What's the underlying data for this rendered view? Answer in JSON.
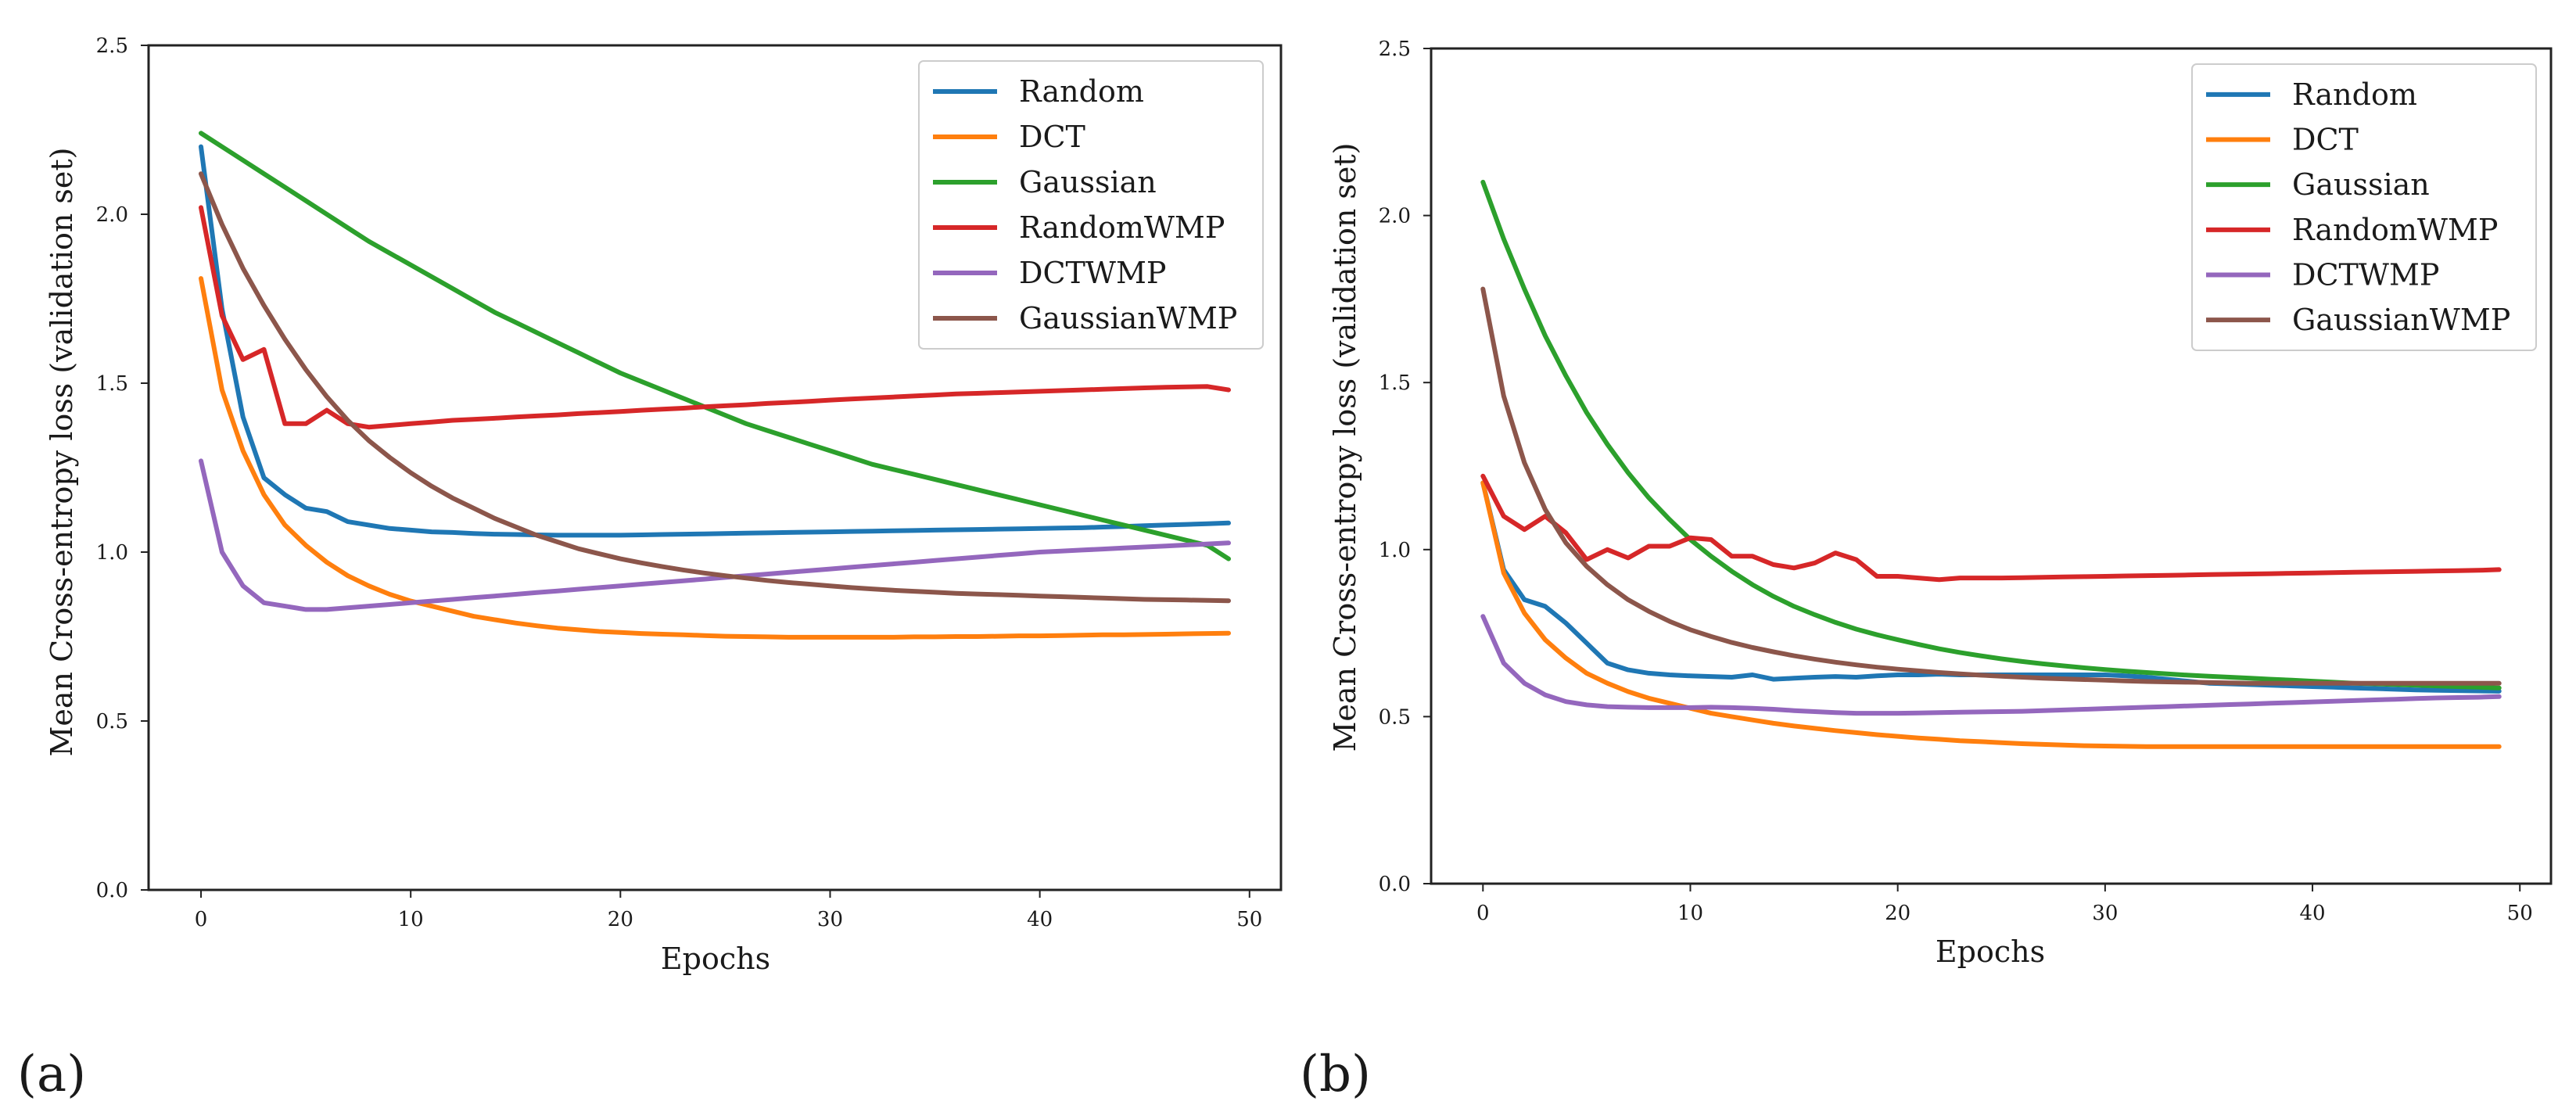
{
  "colors": {
    "Random": "#1f77b4",
    "DCT": "#ff7f0e",
    "Gaussian": "#2ca02c",
    "RandomWMP": "#d62728",
    "DCTWMP": "#9467bd",
    "GaussianWMP": "#8c564b"
  },
  "chart_data": [
    {
      "type": "line",
      "panel_label": "(a)",
      "xlabel": "Epochs",
      "ylabel": "Mean Cross-entropy loss (validation set)",
      "xlim": [
        -2.5,
        51.5
      ],
      "ylim": [
        0.0,
        2.5
      ],
      "xticks": [
        0,
        10,
        20,
        30,
        40,
        50
      ],
      "xtick_labels": [
        "0",
        "10",
        "20",
        "30",
        "40",
        "50"
      ],
      "yticks": [
        0.0,
        0.5,
        1.0,
        1.5,
        2.0,
        2.5
      ],
      "ytick_labels": [
        "0.0",
        "0.5",
        "1.0",
        "1.5",
        "2.0",
        "2.5"
      ],
      "legend": "top-right",
      "x": [
        0,
        1,
        2,
        3,
        4,
        5,
        6,
        7,
        8,
        9,
        10,
        11,
        12,
        13,
        14,
        15,
        16,
        17,
        18,
        19,
        20,
        21,
        22,
        23,
        24,
        25,
        26,
        27,
        28,
        29,
        30,
        31,
        32,
        33,
        34,
        35,
        36,
        37,
        38,
        39,
        40,
        41,
        42,
        43,
        44,
        45,
        46,
        47,
        48,
        49
      ],
      "series": [
        {
          "name": "Random",
          "values": [
            2.2,
            1.72,
            1.4,
            1.22,
            1.17,
            1.13,
            1.12,
            1.09,
            1.08,
            1.07,
            1.065,
            1.06,
            1.058,
            1.055,
            1.053,
            1.052,
            1.051,
            1.05,
            1.05,
            1.05,
            1.05,
            1.051,
            1.052,
            1.053,
            1.054,
            1.055,
            1.056,
            1.057,
            1.058,
            1.059,
            1.06,
            1.061,
            1.062,
            1.063,
            1.064,
            1.065,
            1.066,
            1.067,
            1.068,
            1.069,
            1.07,
            1.071,
            1.072,
            1.074,
            1.076,
            1.078,
            1.08,
            1.082,
            1.084,
            1.086
          ]
        },
        {
          "name": "DCT",
          "values": [
            1.81,
            1.48,
            1.3,
            1.17,
            1.08,
            1.02,
            0.97,
            0.93,
            0.9,
            0.875,
            0.855,
            0.84,
            0.825,
            0.81,
            0.8,
            0.79,
            0.782,
            0.775,
            0.77,
            0.765,
            0.762,
            0.759,
            0.757,
            0.755,
            0.753,
            0.751,
            0.75,
            0.749,
            0.748,
            0.748,
            0.748,
            0.748,
            0.748,
            0.748,
            0.749,
            0.749,
            0.75,
            0.75,
            0.751,
            0.752,
            0.752,
            0.753,
            0.754,
            0.755,
            0.755,
            0.756,
            0.757,
            0.758,
            0.759,
            0.76
          ]
        },
        {
          "name": "Gaussian",
          "values": [
            2.24,
            2.2,
            2.16,
            2.12,
            2.08,
            2.04,
            2.0,
            1.96,
            1.92,
            1.885,
            1.85,
            1.815,
            1.78,
            1.745,
            1.71,
            1.68,
            1.65,
            1.62,
            1.59,
            1.56,
            1.53,
            1.505,
            1.48,
            1.455,
            1.43,
            1.405,
            1.38,
            1.36,
            1.34,
            1.32,
            1.3,
            1.28,
            1.26,
            1.245,
            1.23,
            1.215,
            1.2,
            1.185,
            1.17,
            1.155,
            1.14,
            1.125,
            1.11,
            1.095,
            1.08,
            1.065,
            1.05,
            1.035,
            1.02,
            0.98
          ]
        },
        {
          "name": "RandomWMP",
          "values": [
            2.02,
            1.7,
            1.57,
            1.6,
            1.38,
            1.38,
            1.42,
            1.38,
            1.37,
            1.375,
            1.38,
            1.385,
            1.39,
            1.393,
            1.396,
            1.4,
            1.403,
            1.406,
            1.41,
            1.413,
            1.416,
            1.42,
            1.423,
            1.426,
            1.43,
            1.433,
            1.436,
            1.44,
            1.443,
            1.446,
            1.45,
            1.453,
            1.456,
            1.459,
            1.462,
            1.465,
            1.468,
            1.47,
            1.472,
            1.474,
            1.476,
            1.478,
            1.48,
            1.482,
            1.484,
            1.486,
            1.488,
            1.489,
            1.49,
            1.48
          ]
        },
        {
          "name": "DCTWMP",
          "values": [
            1.27,
            1.0,
            0.9,
            0.85,
            0.84,
            0.83,
            0.83,
            0.835,
            0.84,
            0.845,
            0.85,
            0.855,
            0.86,
            0.865,
            0.87,
            0.875,
            0.88,
            0.885,
            0.89,
            0.895,
            0.9,
            0.905,
            0.91,
            0.915,
            0.92,
            0.925,
            0.93,
            0.935,
            0.94,
            0.945,
            0.95,
            0.955,
            0.96,
            0.965,
            0.97,
            0.975,
            0.98,
            0.985,
            0.99,
            0.995,
            1.0,
            1.003,
            1.006,
            1.009,
            1.012,
            1.015,
            1.018,
            1.021,
            1.024,
            1.027
          ]
        },
        {
          "name": "GaussianWMP",
          "values": [
            2.12,
            1.97,
            1.84,
            1.73,
            1.63,
            1.54,
            1.46,
            1.39,
            1.33,
            1.28,
            1.235,
            1.195,
            1.16,
            1.13,
            1.1,
            1.075,
            1.05,
            1.03,
            1.01,
            0.995,
            0.98,
            0.968,
            0.957,
            0.947,
            0.938,
            0.93,
            0.923,
            0.916,
            0.91,
            0.905,
            0.9,
            0.895,
            0.891,
            0.887,
            0.884,
            0.881,
            0.878,
            0.876,
            0.874,
            0.872,
            0.87,
            0.868,
            0.866,
            0.864,
            0.862,
            0.86,
            0.859,
            0.858,
            0.857,
            0.856
          ]
        }
      ]
    },
    {
      "type": "line",
      "panel_label": "(b)",
      "xlabel": "Epochs",
      "ylabel": "Mean Cross-entropy loss (validation set)",
      "xlim": [
        -2.5,
        51.5
      ],
      "ylim": [
        0.0,
        2.5
      ],
      "xticks": [
        0,
        10,
        20,
        30,
        40,
        50
      ],
      "xtick_labels": [
        "0",
        "10",
        "20",
        "30",
        "40",
        "50"
      ],
      "yticks": [
        0.0,
        0.5,
        1.0,
        1.5,
        2.0,
        2.5
      ],
      "ytick_labels": [
        "0.0",
        "0.5",
        "1.0",
        "1.5",
        "2.0",
        "2.5"
      ],
      "legend": "top-right",
      "x": [
        0,
        1,
        2,
        3,
        4,
        5,
        6,
        7,
        8,
        9,
        10,
        11,
        12,
        13,
        14,
        15,
        16,
        17,
        18,
        19,
        20,
        21,
        22,
        23,
        24,
        25,
        26,
        27,
        28,
        29,
        30,
        31,
        32,
        33,
        34,
        35,
        36,
        37,
        38,
        39,
        40,
        41,
        42,
        43,
        44,
        45,
        46,
        47,
        48,
        49
      ],
      "series": [
        {
          "name": "Random",
          "values": [
            1.2,
            0.94,
            0.85,
            0.83,
            0.78,
            0.72,
            0.66,
            0.64,
            0.63,
            0.625,
            0.622,
            0.62,
            0.618,
            0.625,
            0.612,
            0.615,
            0.618,
            0.62,
            0.618,
            0.622,
            0.625,
            0.625,
            0.627,
            0.625,
            0.625,
            0.625,
            0.625,
            0.625,
            0.625,
            0.625,
            0.625,
            0.622,
            0.618,
            0.612,
            0.606,
            0.6,
            0.598,
            0.596,
            0.594,
            0.592,
            0.59,
            0.588,
            0.586,
            0.584,
            0.582,
            0.58,
            0.579,
            0.578,
            0.577,
            0.576
          ]
        },
        {
          "name": "DCT",
          "values": [
            1.2,
            0.93,
            0.81,
            0.73,
            0.675,
            0.63,
            0.6,
            0.575,
            0.555,
            0.54,
            0.525,
            0.51,
            0.5,
            0.49,
            0.48,
            0.472,
            0.465,
            0.458,
            0.452,
            0.446,
            0.441,
            0.436,
            0.432,
            0.428,
            0.425,
            0.422,
            0.419,
            0.417,
            0.415,
            0.413,
            0.412,
            0.411,
            0.41,
            0.41,
            0.41,
            0.41,
            0.41,
            0.41,
            0.41,
            0.41,
            0.41,
            0.41,
            0.41,
            0.41,
            0.41,
            0.41,
            0.41,
            0.41,
            0.41,
            0.41
          ]
        },
        {
          "name": "Gaussian",
          "values": [
            2.1,
            1.93,
            1.78,
            1.64,
            1.52,
            1.41,
            1.315,
            1.23,
            1.155,
            1.09,
            1.03,
            0.98,
            0.935,
            0.895,
            0.86,
            0.83,
            0.805,
            0.782,
            0.762,
            0.745,
            0.73,
            0.716,
            0.703,
            0.692,
            0.682,
            0.673,
            0.665,
            0.658,
            0.652,
            0.646,
            0.641,
            0.636,
            0.632,
            0.628,
            0.624,
            0.621,
            0.618,
            0.615,
            0.612,
            0.609,
            0.606,
            0.603,
            0.6,
            0.598,
            0.596,
            0.594,
            0.592,
            0.59,
            0.588,
            0.586
          ]
        },
        {
          "name": "RandomWMP",
          "values": [
            1.22,
            1.1,
            1.06,
            1.1,
            1.05,
            0.97,
            1.0,
            0.975,
            1.01,
            1.01,
            1.035,
            1.03,
            0.98,
            0.98,
            0.955,
            0.945,
            0.96,
            0.99,
            0.97,
            0.92,
            0.92,
            0.915,
            0.91,
            0.915,
            0.915,
            0.915,
            0.916,
            0.917,
            0.918,
            0.919,
            0.92,
            0.921,
            0.922,
            0.923,
            0.924,
            0.925,
            0.926,
            0.927,
            0.928,
            0.929,
            0.93,
            0.931,
            0.932,
            0.933,
            0.934,
            0.935,
            0.936,
            0.937,
            0.938,
            0.94
          ]
        },
        {
          "name": "DCTWMP",
          "values": [
            0.8,
            0.66,
            0.6,
            0.565,
            0.545,
            0.535,
            0.53,
            0.528,
            0.527,
            0.527,
            0.527,
            0.528,
            0.527,
            0.525,
            0.522,
            0.518,
            0.515,
            0.512,
            0.51,
            0.51,
            0.51,
            0.511,
            0.512,
            0.513,
            0.514,
            0.515,
            0.516,
            0.518,
            0.52,
            0.522,
            0.524,
            0.526,
            0.528,
            0.53,
            0.532,
            0.534,
            0.536,
            0.538,
            0.54,
            0.542,
            0.544,
            0.546,
            0.548,
            0.55,
            0.552,
            0.554,
            0.556,
            0.557,
            0.558,
            0.56
          ]
        },
        {
          "name": "GaussianWMP",
          "values": [
            1.78,
            1.46,
            1.26,
            1.12,
            1.02,
            0.95,
            0.895,
            0.85,
            0.815,
            0.785,
            0.76,
            0.74,
            0.722,
            0.707,
            0.694,
            0.682,
            0.672,
            0.663,
            0.655,
            0.648,
            0.642,
            0.637,
            0.632,
            0.628,
            0.624,
            0.621,
            0.618,
            0.615,
            0.613,
            0.611,
            0.609,
            0.607,
            0.605,
            0.604,
            0.603,
            0.602,
            0.601,
            0.6,
            0.6,
            0.6,
            0.6,
            0.6,
            0.6,
            0.6,
            0.6,
            0.6,
            0.6,
            0.6,
            0.6,
            0.6
          ]
        }
      ]
    }
  ]
}
